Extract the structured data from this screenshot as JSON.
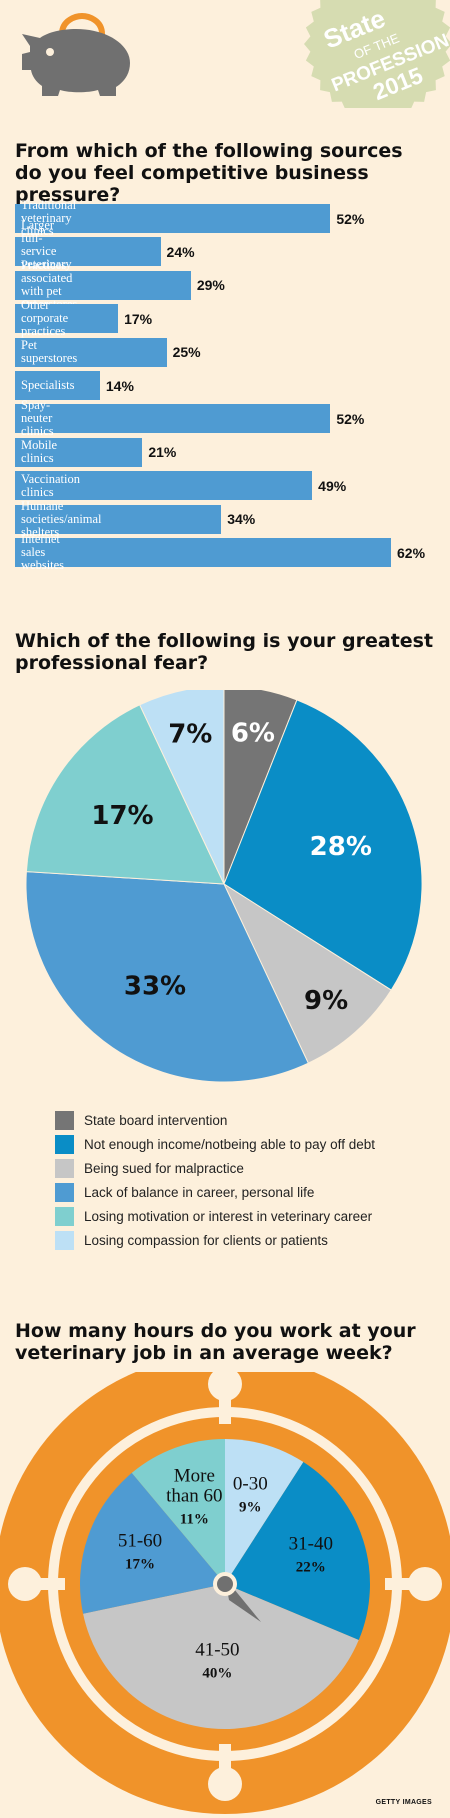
{
  "colors": {
    "background": "#fdf0dc",
    "bar": "#4f9bd2",
    "orange": "#f0932a",
    "badge": "#d6dcb1",
    "piggy": "#707070"
  },
  "badge": {
    "line1": "State",
    "line2": "OF THE",
    "line3": "PROFESSION",
    "line4": "2015"
  },
  "credit": "GETTY IMAGES",
  "chart_data": [
    {
      "type": "bar",
      "orientation": "horizontal",
      "title": "From which of the following sources\ndo you feel competitive business pressure?",
      "categories": [
        "Traditional veterinary clinics",
        "Larger full-service\nveterinary hospitals",
        "Practices associated\nwith pet superstores",
        "Other corporate\npractices",
        "Pet superstores",
        "Specialists",
        "Spay-neuter clinics",
        "Mobile clinics",
        "Vaccination clinics",
        "Humane societies/animal shelters",
        "Internet sales websites"
      ],
      "values": [
        52,
        24,
        29,
        17,
        25,
        14,
        52,
        21,
        49,
        34,
        62
      ],
      "value_labels": [
        "52%",
        "24%",
        "29%",
        "17%",
        "25%",
        "14%",
        "52%",
        "21%",
        "49%",
        "34%",
        "62%"
      ],
      "xlim": [
        0,
        62
      ]
    },
    {
      "type": "pie",
      "title": "Which of the following is your greatest\nprofessional fear?",
      "slices": [
        {
          "label": "State board intervention",
          "value": 6,
          "value_label": "6%",
          "color": "#757575"
        },
        {
          "label": "Not enough income/notbeing able to pay off debt",
          "value": 28,
          "value_label": "28%",
          "color": "#0a8dc6"
        },
        {
          "label": "Being sued for malpractice",
          "value": 9,
          "value_label": "9%",
          "color": "#c6c6c6"
        },
        {
          "label": "Lack of balance in career, personal life",
          "value": 33,
          "value_label": "33%",
          "color": "#4f9bd2"
        },
        {
          "label": "Losing motivation or interest in veterinary career",
          "value": 17,
          "value_label": "17%",
          "color": "#7fcfcf"
        },
        {
          "label": "Losing compassion for clients or patients",
          "value": 7,
          "value_label": "7%",
          "color": "#bde0f5"
        }
      ]
    },
    {
      "type": "pie",
      "title": "How many hours do you work at your\nveterinary job in an average week?",
      "slices": [
        {
          "label": "0-30",
          "value": 9,
          "value_label": "9%",
          "color": "#bde0f5"
        },
        {
          "label": "31-40",
          "value": 22,
          "value_label": "22%",
          "color": "#0a8dc6"
        },
        {
          "label": "41-50",
          "value": 40,
          "value_label": "40%",
          "color": "#c6c6c6"
        },
        {
          "label": "51-60",
          "value": 17,
          "value_label": "17%",
          "color": "#4f9bd2"
        },
        {
          "label": "More\nthan 60",
          "value": 11,
          "value_label": "11%",
          "color": "#7fcfcf"
        }
      ]
    }
  ]
}
